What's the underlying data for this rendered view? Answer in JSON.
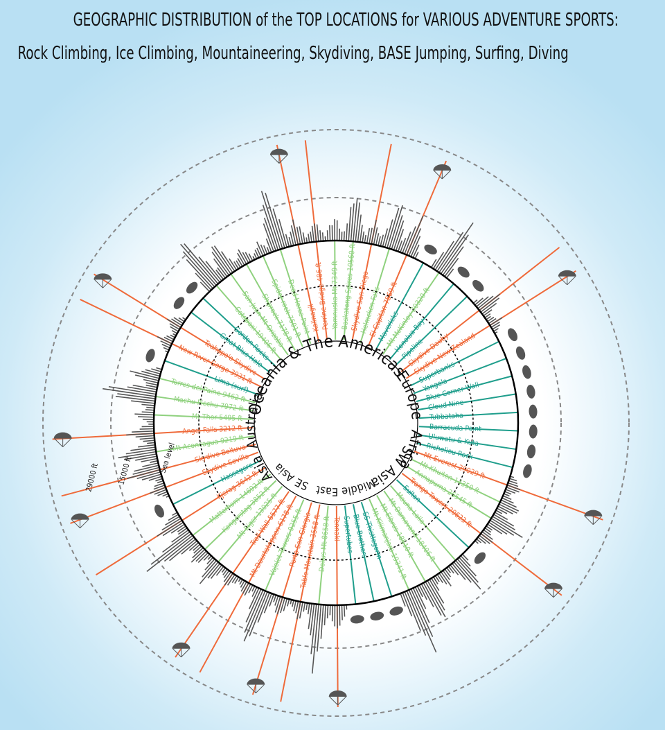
{
  "title": {
    "line1": "GEOGRAPHIC DISTRIBUTION of the TOP LOCATIONS for VARIOUS ADVENTURE SPORTS:",
    "line2": "Rock Climbing, Ice Climbing, Mountaineering, Skydiving, BASE Jumping, Surfing, Diving"
  },
  "colors": {
    "rock_climbing": "#8fd17e",
    "surfing_diving": "#1f9e8c",
    "skydiving_base": "#ef6a3a",
    "ring": "#000000",
    "dashed": "#888888",
    "silhouette": "#555555"
  },
  "scale_labels": [
    "Sea level",
    "15000 ft",
    "29000 ft"
  ],
  "regions": [
    "Oceania",
    "& The Americas",
    "Europe",
    "Africa",
    "SW Asia",
    "Middle East",
    "SE Asia",
    "Asia",
    "Australia"
  ],
  "locations": [
    {
      "label": "Kalinagil",
      "type": "base"
    },
    {
      "label": "Perrine Bridge 486 ft",
      "type": "base"
    },
    {
      "label": "Yamnuska Mt 7349 ft",
      "type": "rock"
    },
    {
      "label": "Baskatong Spires 10560 ft",
      "type": "rock"
    },
    {
      "label": "Skydive San Diego",
      "type": "base"
    },
    {
      "label": "Helmcken Falls",
      "type": "rock"
    },
    {
      "label": "El Capitan 7569 ft",
      "type": "base"
    },
    {
      "label": "Mavericks",
      "type": "surf"
    },
    {
      "label": "Mt McKinley 20320 ft",
      "type": "rock"
    },
    {
      "label": "Honolua Bay",
      "type": "surf"
    },
    {
      "label": "Pipeline",
      "type": "surf"
    },
    {
      "label": "Skydive Dauby",
      "type": "base"
    },
    {
      "label": "Skydive New Zealand",
      "type": "base"
    },
    {
      "label": "Superbanks",
      "type": "surf"
    },
    {
      "label": "Yongala",
      "type": "surf"
    },
    {
      "label": "Blue Corner Wall",
      "type": "surf"
    },
    {
      "label": "Cloud Nine",
      "type": "surf"
    },
    {
      "label": "Tubbataha",
      "type": "surf"
    },
    {
      "label": "Barracuda Point",
      "type": "surf"
    },
    {
      "label": "Uluwatu & Kuta",
      "type": "surf"
    },
    {
      "label": "Richelieu Rock",
      "type": "surf"
    },
    {
      "label": "Mt Everest 29029 ft",
      "type": "base"
    },
    {
      "label": "Mt Khuiten 14350 ft",
      "type": "rock"
    },
    {
      "label": "Annapurna 26545 ft",
      "type": "rock"
    },
    {
      "label": "Trango Towers 20623 ft",
      "type": "base"
    },
    {
      "label": "Sultan",
      "type": "surf"
    },
    {
      "label": "Mauna Lalla",
      "type": "rock"
    },
    {
      "label": "Mt Damavand 18406 ft",
      "type": "rock"
    },
    {
      "label": "Mt Elbrus 18510 ft",
      "type": "rock"
    },
    {
      "label": "Mt Kilimanjaro 19341 ft",
      "type": "rock"
    },
    {
      "label": "SS Thistlegorm",
      "type": "surf"
    },
    {
      "label": "Blue Brothers",
      "type": "surf"
    },
    {
      "label": "Supertubes",
      "type": "surf"
    },
    {
      "label": "Tennaki",
      "type": "base"
    },
    {
      "label": "Dolius Mt 8658 ft",
      "type": "rock"
    },
    {
      "label": "Table Mountain 3558 ft",
      "type": "base"
    },
    {
      "label": "Porto San Giorgio",
      "type": "base"
    },
    {
      "label": "Vajolet Towers 9255 ft",
      "type": "rock"
    },
    {
      "label": "Mt Daurtatoppen 6178 ft",
      "type": "base"
    },
    {
      "label": "Troll Wall 5577 ft",
      "type": "base"
    },
    {
      "label": "Mt Eiger 13025 ft",
      "type": "rock"
    },
    {
      "label": "Kangerstag 3852 ft",
      "type": "rock"
    },
    {
      "label": "Matterhorn 14692 ft",
      "type": "rock"
    },
    {
      "label": "Kjerag 3642 ft",
      "type": "base"
    },
    {
      "label": "Hassegore",
      "type": "surf"
    },
    {
      "label": "Skydive Sevilla",
      "type": "base"
    },
    {
      "label": "Skydive Boituva",
      "type": "base"
    },
    {
      "label": "Mt Aconcagua 9219 ft",
      "type": "rock"
    },
    {
      "label": "Angel Falls 3212 ft",
      "type": "base"
    },
    {
      "label": "Mt Thor 5495 ft",
      "type": "rock"
    },
    {
      "label": "Machu Picchu 7972 ft",
      "type": "rock"
    },
    {
      "label": "Torres del Paine 9462 ft",
      "type": "rock"
    },
    {
      "label": "Lima (surf)",
      "type": "surf"
    },
    {
      "label": "New River Gorge 3931 ft",
      "type": "base"
    },
    {
      "label": "Teahupo'o Skydive",
      "type": "base"
    },
    {
      "label": "Great Blue Hole",
      "type": "surf"
    },
    {
      "label": "Gordon Rocks",
      "type": "surf"
    },
    {
      "label": "Cotopaxi 19406 ft",
      "type": "rock"
    },
    {
      "label": "San Juan Mt Orizaba",
      "type": "rock"
    },
    {
      "label": "Shiprock 7178 ft",
      "type": "rock"
    },
    {
      "label": "Spider rock 7501 ft",
      "type": "rock"
    },
    {
      "label": "Dead Horse Point",
      "type": "rock"
    }
  ]
}
